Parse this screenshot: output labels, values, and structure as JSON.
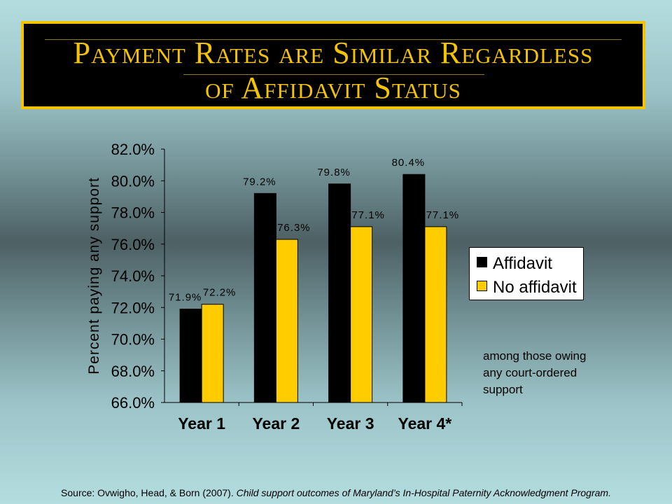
{
  "slide": {
    "title_line1": "Payment Rates are Similar Regardless",
    "title_line2": "of Affidavit Status",
    "note": "among those owing any court-ordered support",
    "source_prefix": "Source: Ovwigho, Head, & Born (2007). ",
    "source_title": "Child support outcomes of Maryland’s In-Hospital Paternity Acknowledgment Program."
  },
  "colors": {
    "title_text": "#f5c400",
    "title_border": "#f5c400",
    "affidavit": "#000000",
    "no_affidavit": "#ffcc00"
  },
  "chart_data": {
    "type": "bar",
    "categories": [
      "Year 1",
      "Year 2",
      "Year 3",
      "Year 4*"
    ],
    "series": [
      {
        "name": "Affidavit",
        "values": [
          71.9,
          79.2,
          79.8,
          80.4
        ],
        "labels": [
          "71.9%",
          "79.2%",
          "79.8%",
          "80.4%"
        ],
        "color": "#000000"
      },
      {
        "name": "No affidavit",
        "values": [
          72.2,
          76.3,
          77.1,
          77.1
        ],
        "labels": [
          "72.2%",
          "76.3%",
          "77.1%",
          "77.1%"
        ],
        "color": "#ffcc00"
      }
    ],
    "ylabel": "Percent paying any support",
    "xlabel": "",
    "ylim": [
      66,
      82
    ],
    "yticks": [
      66,
      68,
      70,
      72,
      74,
      76,
      78,
      80,
      82
    ],
    "ytick_labels": [
      "66.0%",
      "68.0%",
      "70.0%",
      "72.0%",
      "74.0%",
      "76.0%",
      "78.0%",
      "80.0%",
      "82.0%"
    ],
    "grid": false,
    "legend": "right"
  }
}
